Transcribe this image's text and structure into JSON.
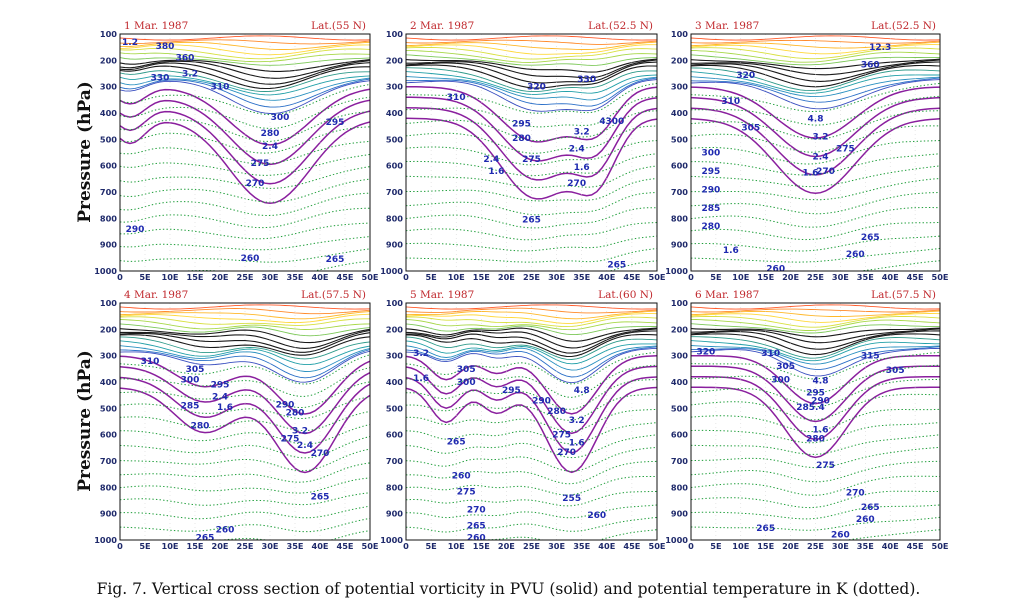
{
  "caption": "Fig. 7. Vertical cross section of potential vorticity in PVU (solid) and potential temperature in K (dotted).",
  "ylabel": "Pressure (hPa)",
  "colors": {
    "theta": "#1f9e3a",
    "pv_strong": "#8a1f9e",
    "label": "#1f2ab0",
    "title": "#c0282d",
    "tick": "#1f2a6b"
  },
  "chart_data": [
    {
      "type": "contour",
      "title": "1 Mar. 1987",
      "lat": "Lat.(55 N)",
      "xlim": [
        0,
        50
      ],
      "ylim": [
        1000,
        100
      ],
      "xticks": [
        "0",
        "5E",
        "10E",
        "15E",
        "20E",
        "25E",
        "30E",
        "35E",
        "40E",
        "45E",
        "50E"
      ],
      "yticks": [
        "100",
        "200",
        "300",
        "400",
        "500",
        "600",
        "700",
        "800",
        "900",
        "1000"
      ],
      "labels": [
        {
          "text": "1.2",
          "x": 2,
          "p": 130
        },
        {
          "text": "380",
          "x": 9,
          "p": 145
        },
        {
          "text": "360",
          "x": 13,
          "p": 190
        },
        {
          "text": "330",
          "x": 8,
          "p": 265
        },
        {
          "text": "3.2",
          "x": 14,
          "p": 250
        },
        {
          "text": "310",
          "x": 20,
          "p": 300
        },
        {
          "text": "300",
          "x": 32,
          "p": 415
        },
        {
          "text": "295",
          "x": 43,
          "p": 435
        },
        {
          "text": "280",
          "x": 30,
          "p": 475
        },
        {
          "text": "2.4",
          "x": 30,
          "p": 525
        },
        {
          "text": "275",
          "x": 28,
          "p": 590
        },
        {
          "text": "270",
          "x": 27,
          "p": 665
        },
        {
          "text": "290",
          "x": 3,
          "p": 840
        },
        {
          "text": "260",
          "x": 26,
          "p": 950
        },
        {
          "text": "265",
          "x": 43,
          "p": 955
        }
      ]
    },
    {
      "type": "contour",
      "title": "2 Mar. 1987",
      "lat": "Lat.(52.5 N)",
      "xlim": [
        0,
        50
      ],
      "ylim": [
        1000,
        100
      ],
      "xticks": [
        "0",
        "5E",
        "10E",
        "15E",
        "20E",
        "25E",
        "30E",
        "35E",
        "40E",
        "45E",
        "50E"
      ],
      "yticks": [
        "100",
        "200",
        "300",
        "400",
        "500",
        "600",
        "700",
        "800",
        "900",
        "1000"
      ],
      "labels": [
        {
          "text": "330",
          "x": 36,
          "p": 270
        },
        {
          "text": "320",
          "x": 26,
          "p": 300
        },
        {
          "text": "310",
          "x": 10,
          "p": 340
        },
        {
          "text": "295",
          "x": 23,
          "p": 440
        },
        {
          "text": "4300",
          "x": 41,
          "p": 430
        },
        {
          "text": "3.2",
          "x": 35,
          "p": 470
        },
        {
          "text": "280",
          "x": 23,
          "p": 495
        },
        {
          "text": "2.4",
          "x": 34,
          "p": 535
        },
        {
          "text": "2.4",
          "x": 17,
          "p": 575
        },
        {
          "text": "275",
          "x": 25,
          "p": 575
        },
        {
          "text": "1.6",
          "x": 18,
          "p": 620
        },
        {
          "text": "1.6",
          "x": 35,
          "p": 605
        },
        {
          "text": "270",
          "x": 34,
          "p": 665
        },
        {
          "text": "265",
          "x": 25,
          "p": 805
        },
        {
          "text": "265",
          "x": 42,
          "p": 975
        }
      ]
    },
    {
      "type": "contour",
      "title": "3 Mar. 1987",
      "lat": "Lat.(52.5 N)",
      "xlim": [
        0,
        50
      ],
      "ylim": [
        1000,
        100
      ],
      "xticks": [
        "0",
        "5E",
        "10E",
        "15E",
        "20E",
        "25E",
        "30E",
        "35E",
        "40E",
        "45E",
        "50E"
      ],
      "yticks": [
        "100",
        "200",
        "300",
        "400",
        "500",
        "600",
        "700",
        "800",
        "900",
        "1000"
      ],
      "labels": [
        {
          "text": "12.3",
          "x": 38,
          "p": 150
        },
        {
          "text": "360",
          "x": 36,
          "p": 215
        },
        {
          "text": "320",
          "x": 11,
          "p": 255
        },
        {
          "text": "310",
          "x": 8,
          "p": 355
        },
        {
          "text": "305",
          "x": 12,
          "p": 455
        },
        {
          "text": "300",
          "x": 4,
          "p": 550
        },
        {
          "text": "295",
          "x": 4,
          "p": 620
        },
        {
          "text": "290",
          "x": 4,
          "p": 690
        },
        {
          "text": "285",
          "x": 4,
          "p": 760
        },
        {
          "text": "280",
          "x": 4,
          "p": 830
        },
        {
          "text": "4.8",
          "x": 25,
          "p": 420
        },
        {
          "text": "3.2",
          "x": 26,
          "p": 490
        },
        {
          "text": "275",
          "x": 31,
          "p": 535
        },
        {
          "text": "2.4",
          "x": 26,
          "p": 565
        },
        {
          "text": "1.6",
          "x": 24,
          "p": 625
        },
        {
          "text": "270",
          "x": 27,
          "p": 620
        },
        {
          "text": "265",
          "x": 36,
          "p": 870
        },
        {
          "text": "260",
          "x": 33,
          "p": 935
        },
        {
          "text": "1.6",
          "x": 8,
          "p": 920
        },
        {
          "text": "260",
          "x": 17,
          "p": 990
        }
      ]
    },
    {
      "type": "contour",
      "title": "4 Mar. 1987",
      "lat": "Lat.(57.5 N)",
      "xlim": [
        0,
        50
      ],
      "ylim": [
        1000,
        100
      ],
      "xticks": [
        "0",
        "5E",
        "10E",
        "15E",
        "20E",
        "25E",
        "30E",
        "35E",
        "40E",
        "45E",
        "50E"
      ],
      "yticks": [
        "100",
        "200",
        "300",
        "400",
        "500",
        "600",
        "700",
        "800",
        "900",
        "1000"
      ],
      "labels": [
        {
          "text": "310",
          "x": 6,
          "p": 320
        },
        {
          "text": "305",
          "x": 15,
          "p": 350
        },
        {
          "text": "300",
          "x": 14,
          "p": 390
        },
        {
          "text": "295",
          "x": 20,
          "p": 410
        },
        {
          "text": "2.4",
          "x": 20,
          "p": 455
        },
        {
          "text": "285",
          "x": 14,
          "p": 490
        },
        {
          "text": "1.6",
          "x": 21,
          "p": 495
        },
        {
          "text": "290",
          "x": 33,
          "p": 485
        },
        {
          "text": "280",
          "x": 16,
          "p": 565
        },
        {
          "text": "280",
          "x": 35,
          "p": 515
        },
        {
          "text": "3.2",
          "x": 36,
          "p": 585
        },
        {
          "text": "275",
          "x": 34,
          "p": 615
        },
        {
          "text": "2.4",
          "x": 37,
          "p": 640
        },
        {
          "text": "270",
          "x": 40,
          "p": 670
        },
        {
          "text": "265",
          "x": 40,
          "p": 835
        },
        {
          "text": "260",
          "x": 21,
          "p": 960
        },
        {
          "text": "265",
          "x": 17,
          "p": 990
        }
      ]
    },
    {
      "type": "contour",
      "title": "5 Mar. 1987",
      "lat": "Lat.(60 N)",
      "xlim": [
        0,
        50
      ],
      "ylim": [
        1000,
        100
      ],
      "xticks": [
        "0",
        "5E",
        "10E",
        "15E",
        "20E",
        "25E",
        "30E",
        "35E",
        "40E",
        "45E",
        "50E"
      ],
      "yticks": [
        "100",
        "200",
        "300",
        "400",
        "500",
        "600",
        "700",
        "800",
        "900",
        "1000"
      ],
      "labels": [
        {
          "text": "3.2",
          "x": 3,
          "p": 290
        },
        {
          "text": "305",
          "x": 12,
          "p": 350
        },
        {
          "text": "1.6",
          "x": 3,
          "p": 385
        },
        {
          "text": "300",
          "x": 12,
          "p": 400
        },
        {
          "text": "295",
          "x": 21,
          "p": 430
        },
        {
          "text": "290",
          "x": 27,
          "p": 470
        },
        {
          "text": "4.8",
          "x": 35,
          "p": 430
        },
        {
          "text": "280",
          "x": 30,
          "p": 510
        },
        {
          "text": "3.2",
          "x": 34,
          "p": 545
        },
        {
          "text": "275",
          "x": 31,
          "p": 600
        },
        {
          "text": "1.6",
          "x": 34,
          "p": 630
        },
        {
          "text": "270",
          "x": 32,
          "p": 665
        },
        {
          "text": "265",
          "x": 10,
          "p": 625
        },
        {
          "text": "260",
          "x": 11,
          "p": 755
        },
        {
          "text": "275",
          "x": 12,
          "p": 815
        },
        {
          "text": "255",
          "x": 33,
          "p": 840
        },
        {
          "text": "270",
          "x": 14,
          "p": 885
        },
        {
          "text": "260",
          "x": 38,
          "p": 905
        },
        {
          "text": "265",
          "x": 14,
          "p": 945
        },
        {
          "text": "260",
          "x": 14,
          "p": 990
        }
      ]
    },
    {
      "type": "contour",
      "title": "6 Mar. 1987",
      "lat": "Lat.(57.5 N)",
      "xlim": [
        0,
        50
      ],
      "ylim": [
        1000,
        100
      ],
      "xticks": [
        "0",
        "5E",
        "10E",
        "15E",
        "20E",
        "25E",
        "30E",
        "35E",
        "40E",
        "45E",
        "50E"
      ],
      "yticks": [
        "100",
        "200",
        "300",
        "400",
        "500",
        "600",
        "700",
        "800",
        "900",
        "1000"
      ],
      "labels": [
        {
          "text": "320",
          "x": 3,
          "p": 285
        },
        {
          "text": "310",
          "x": 16,
          "p": 290
        },
        {
          "text": "315",
          "x": 36,
          "p": 300
        },
        {
          "text": "305",
          "x": 19,
          "p": 340
        },
        {
          "text": "305",
          "x": 41,
          "p": 355
        },
        {
          "text": "300",
          "x": 18,
          "p": 390
        },
        {
          "text": "4.8",
          "x": 26,
          "p": 395
        },
        {
          "text": "295",
          "x": 25,
          "p": 440
        },
        {
          "text": "290",
          "x": 26,
          "p": 470
        },
        {
          "text": "285.4",
          "x": 24,
          "p": 495
        },
        {
          "text": "1.6",
          "x": 26,
          "p": 580
        },
        {
          "text": "280",
          "x": 25,
          "p": 615
        },
        {
          "text": "275",
          "x": 27,
          "p": 715
        },
        {
          "text": "270",
          "x": 33,
          "p": 820
        },
        {
          "text": "265",
          "x": 36,
          "p": 875
        },
        {
          "text": "260",
          "x": 35,
          "p": 920
        },
        {
          "text": "265",
          "x": 15,
          "p": 955
        },
        {
          "text": "260",
          "x": 30,
          "p": 980
        }
      ]
    }
  ]
}
